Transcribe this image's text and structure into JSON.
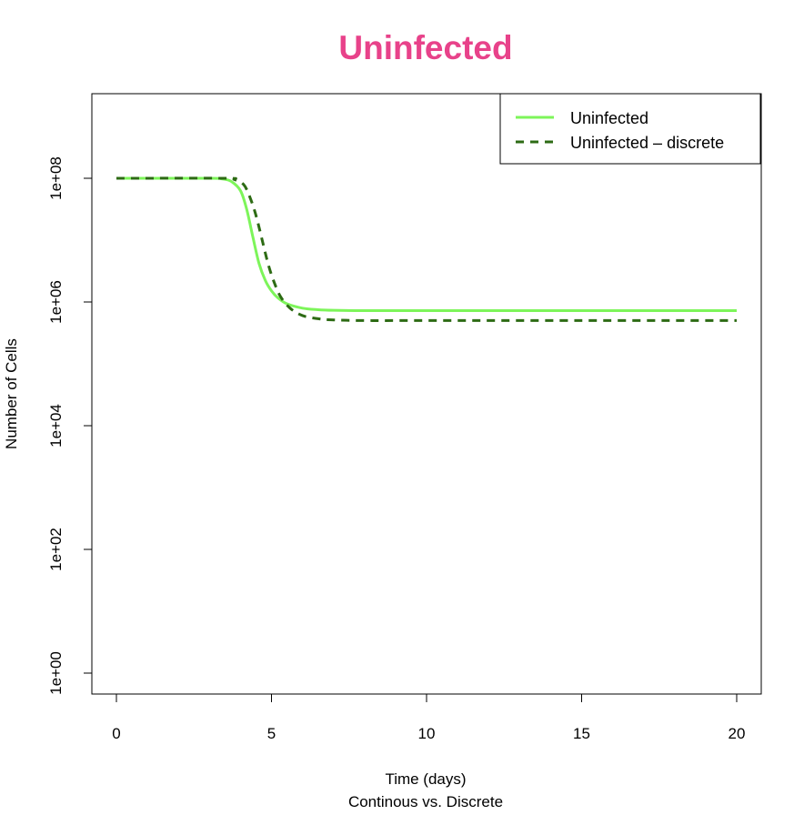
{
  "chart_data": {
    "type": "line",
    "title": "Uninfected",
    "title_color": "#e8428a",
    "xlabel": "Time (days)",
    "subtitle": "Continous vs. Discrete",
    "ylabel": "Number of Cells",
    "xlim": [
      0,
      20
    ],
    "ylim_log10": [
      -0.35,
      9.3
    ],
    "y_scale": "log10",
    "x_ticks": [
      0,
      5,
      10,
      15,
      20
    ],
    "x_tick_labels": [
      "0",
      "5",
      "10",
      "15",
      "20"
    ],
    "y_ticks_log10": [
      0,
      2,
      4,
      6,
      8
    ],
    "y_tick_labels": [
      "1e+00",
      "1e+02",
      "1e+04",
      "1e+06",
      "1e+08"
    ],
    "grid": false,
    "legend_position": "top-right",
    "series": [
      {
        "name": "Uninfected",
        "color": "#7df55a",
        "dash": "solid",
        "x": [
          0,
          3.0,
          3.4,
          3.7,
          4.0,
          4.2,
          4.4,
          4.6,
          4.8,
          5.0,
          5.2,
          5.5,
          6.0,
          6.5,
          7.0,
          8.0,
          10.0,
          15.0,
          20.0
        ],
        "log10": [
          8,
          8,
          7.99,
          7.95,
          7.8,
          7.5,
          7.05,
          6.62,
          6.35,
          6.18,
          6.07,
          5.97,
          5.9,
          5.875,
          5.865,
          5.86,
          5.86,
          5.86,
          5.86
        ]
      },
      {
        "name": "Uninfected – discrete",
        "color": "#2d6b14",
        "dash": "dashed",
        "x": [
          0,
          3.5,
          3.8,
          4.1,
          4.3,
          4.5,
          4.7,
          4.9,
          5.1,
          5.3,
          5.6,
          6.0,
          6.5,
          7.0,
          8.0,
          10.0,
          15.0,
          20.0
        ],
        "log10": [
          8,
          8,
          7.98,
          7.9,
          7.7,
          7.4,
          7.0,
          6.6,
          6.3,
          6.08,
          5.9,
          5.78,
          5.73,
          5.71,
          5.7,
          5.7,
          5.7,
          5.7
        ]
      }
    ]
  }
}
